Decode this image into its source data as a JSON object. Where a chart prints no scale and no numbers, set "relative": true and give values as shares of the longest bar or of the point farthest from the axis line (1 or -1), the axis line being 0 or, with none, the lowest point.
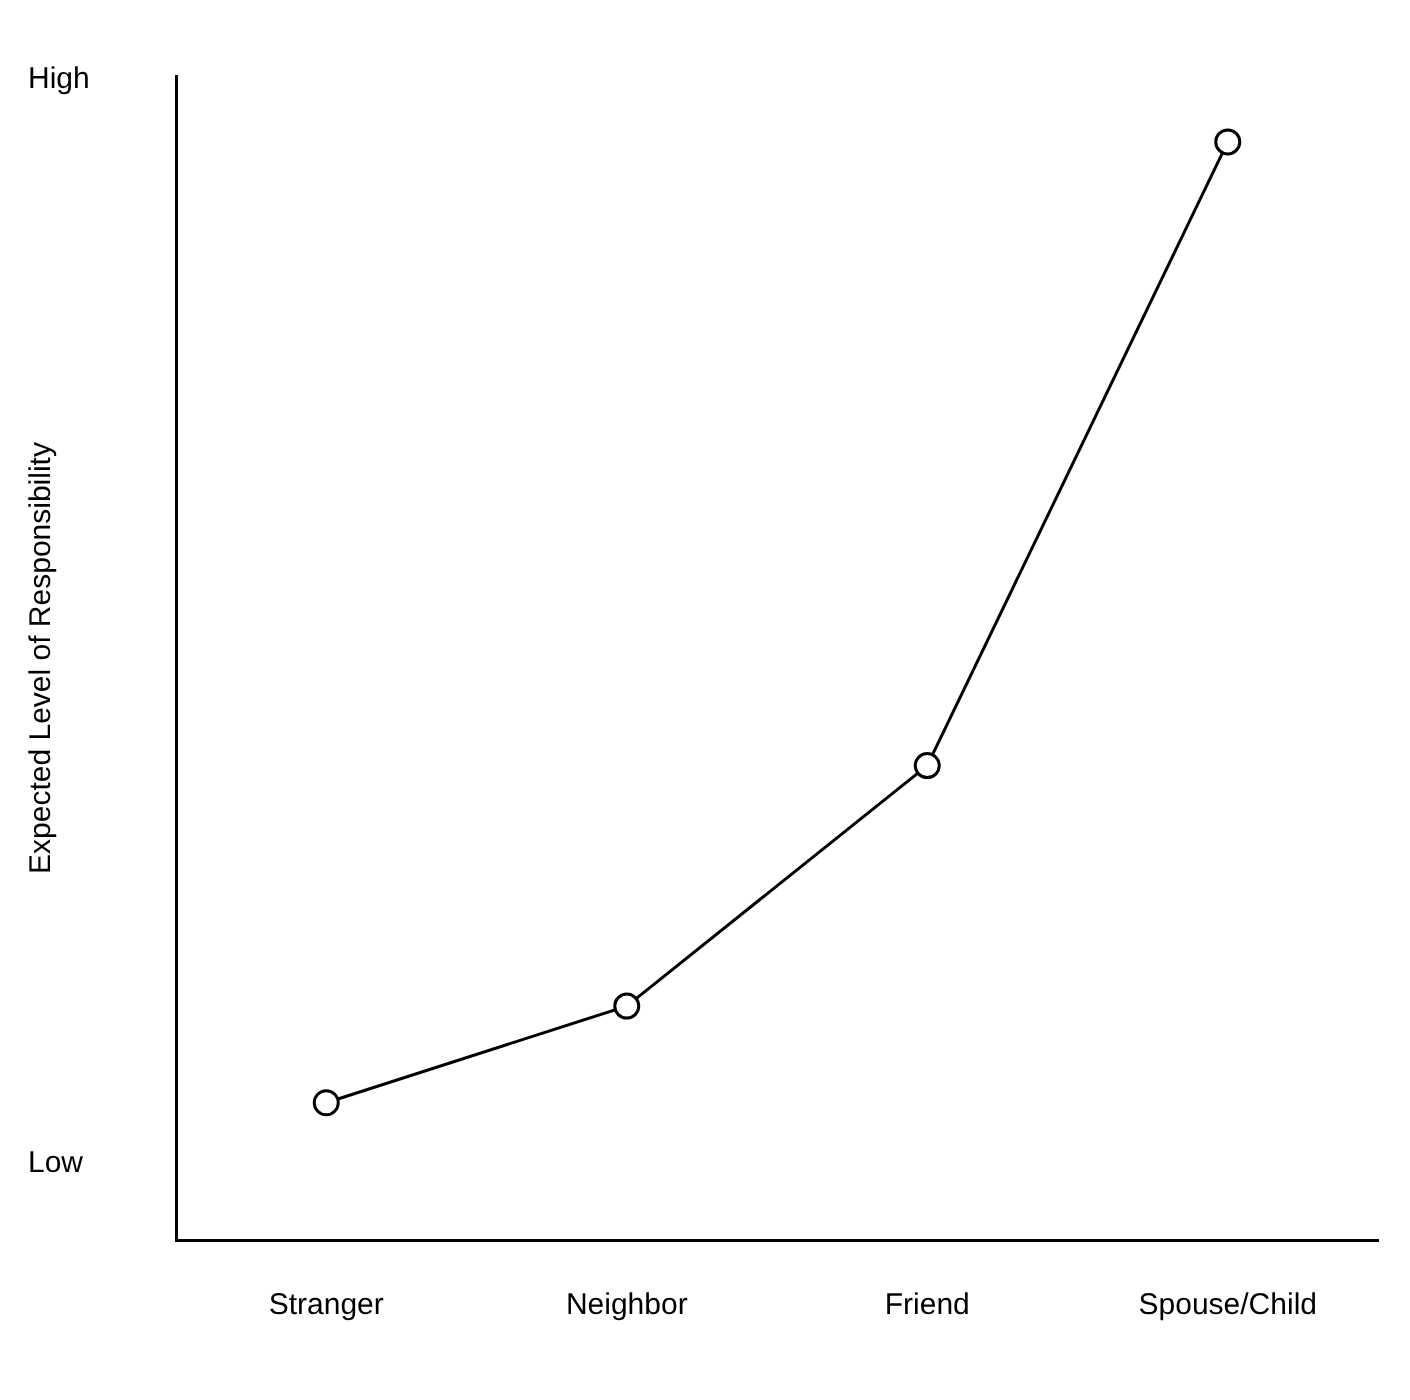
{
  "chart_data": {
    "type": "line",
    "relative": true,
    "ylabel": "Expected Level of Responsibility",
    "categories": [
      "Stranger",
      "Neighbor",
      "Friend",
      "Spouse/Child"
    ],
    "series": [
      {
        "color": "#000000",
        "values": [
          0.125,
          0.213,
          0.432,
          1
        ]
      }
    ],
    "annotations": [
      "High",
      "Low"
    ],
    "marker": "circle",
    "line_style": "solid",
    "grid": false,
    "legend": false
  }
}
